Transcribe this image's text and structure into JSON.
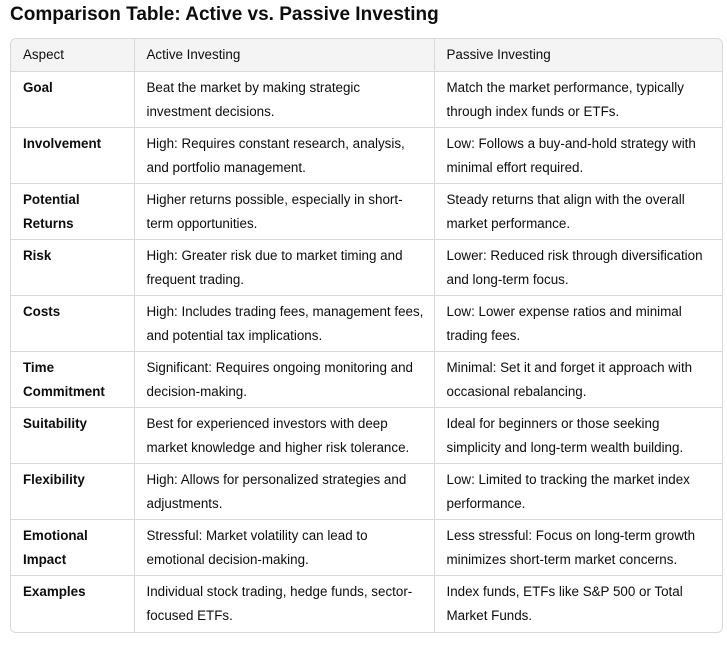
{
  "title": "Comparison Table: Active vs. Passive Investing",
  "headers": [
    "Aspect",
    "Active Investing",
    "Passive Investing"
  ],
  "rows": [
    {
      "aspect": "Goal",
      "active": "Beat the market by making strategic investment decisions.",
      "passive": "Match the market performance, typically through index funds or ETFs."
    },
    {
      "aspect": "Involvement",
      "active": "High: Requires constant research, analysis, and portfolio management.",
      "passive": "Low: Follows a buy-and-hold strategy with minimal effort required."
    },
    {
      "aspect": "Potential Returns",
      "active": "Higher returns possible, especially in short-term opportunities.",
      "passive": "Steady returns that align with the overall market performance."
    },
    {
      "aspect": "Risk",
      "active": "High: Greater risk due to market timing and frequent trading.",
      "passive": "Lower: Reduced risk through diversification and long-term focus."
    },
    {
      "aspect": "Costs",
      "active": "High: Includes trading fees, management fees, and potential tax implications.",
      "passive": "Low: Lower expense ratios and minimal trading fees."
    },
    {
      "aspect": "Time Commitment",
      "active": "Significant: Requires ongoing monitoring and decision-making.",
      "passive": "Minimal: Set it and forget it approach with occasional rebalancing."
    },
    {
      "aspect": "Suitability",
      "active": "Best for experienced investors with deep market knowledge and higher risk tolerance.",
      "passive": "Ideal for beginners or those seeking simplicity and long-term wealth building."
    },
    {
      "aspect": "Flexibility",
      "active": "High: Allows for personalized strategies and adjustments.",
      "passive": "Low: Limited to tracking the market index performance."
    },
    {
      "aspect": "Emotional Impact",
      "active": "Stressful: Market volatility can lead to emotional decision-making.",
      "passive": "Less stressful: Focus on long-term growth minimizes short-term market concerns."
    },
    {
      "aspect": "Examples",
      "active": "Individual stock trading, hedge funds, sector-focused ETFs.",
      "passive": "Index funds, ETFs like S&P 500 or Total Market Funds."
    }
  ]
}
